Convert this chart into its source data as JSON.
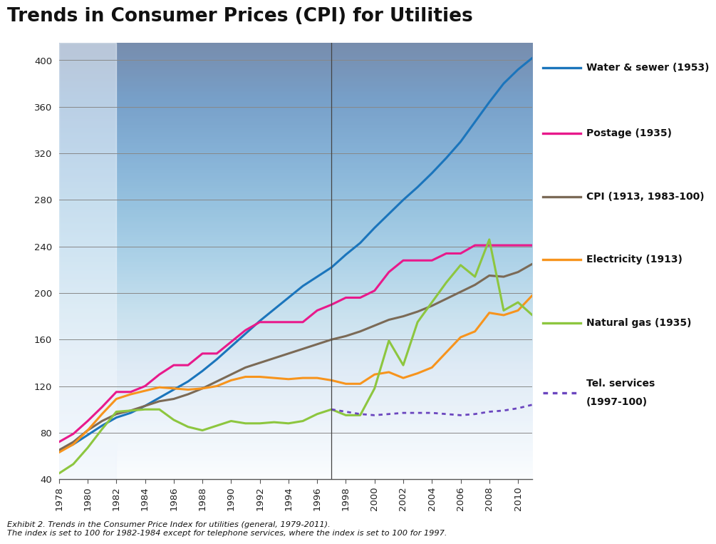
{
  "title": "Trends in Consumer Prices (CPI) for Utilities",
  "caption_line1": "Exhibit 2. Trends in the Consumer Price Index for utilities (general, 1979-2011).",
  "caption_line2": "The index is set to 100 for 1982-1984 except for telephone services, where the index is set to 100 for 1997.",
  "xlim": [
    1978,
    2011
  ],
  "ylim": [
    40,
    415
  ],
  "yticks": [
    80,
    120,
    160,
    200,
    240,
    280,
    320,
    360,
    400
  ],
  "ytick_40": 40,
  "xticks": [
    1978,
    1980,
    1982,
    1984,
    1986,
    1988,
    1990,
    1992,
    1994,
    1996,
    1998,
    2000,
    2002,
    2004,
    2006,
    2008,
    2010
  ],
  "water_sewer": {
    "years": [
      1978,
      1979,
      1980,
      1981,
      1982,
      1983,
      1984,
      1985,
      1986,
      1987,
      1988,
      1989,
      1990,
      1991,
      1992,
      1993,
      1994,
      1995,
      1996,
      1997,
      1998,
      1999,
      2000,
      2001,
      2002,
      2003,
      2004,
      2005,
      2006,
      2007,
      2008,
      2009,
      2010,
      2011
    ],
    "values": [
      64,
      70,
      78,
      86,
      93,
      97,
      103,
      110,
      117,
      124,
      133,
      143,
      154,
      165,
      176,
      186,
      196,
      206,
      214,
      222,
      233,
      243,
      256,
      268,
      280,
      291,
      303,
      316,
      330,
      347,
      364,
      380,
      392,
      402
    ],
    "color": "#1B75BC",
    "label": "Water & sewer (1953)",
    "lw": 2.2
  },
  "postage": {
    "years": [
      1978,
      1979,
      1980,
      1981,
      1982,
      1983,
      1984,
      1985,
      1986,
      1987,
      1988,
      1989,
      1990,
      1991,
      1992,
      1993,
      1994,
      1995,
      1996,
      1997,
      1998,
      1999,
      2000,
      2001,
      2002,
      2003,
      2004,
      2005,
      2006,
      2007,
      2008,
      2009,
      2010,
      2011
    ],
    "values": [
      72,
      79,
      90,
      102,
      115,
      115,
      120,
      130,
      138,
      138,
      148,
      148,
      158,
      168,
      175,
      175,
      175,
      175,
      185,
      190,
      196,
      196,
      202,
      218,
      228,
      228,
      228,
      234,
      234,
      241,
      241,
      241,
      241,
      241
    ],
    "color": "#E8198B",
    "label": "Postage (1935)",
    "lw": 2.2
  },
  "cpi": {
    "years": [
      1978,
      1979,
      1980,
      1981,
      1982,
      1983,
      1984,
      1985,
      1986,
      1987,
      1988,
      1989,
      1990,
      1991,
      1992,
      1993,
      1994,
      1995,
      1996,
      1997,
      1998,
      1999,
      2000,
      2001,
      2002,
      2003,
      2004,
      2005,
      2006,
      2007,
      2008,
      2009,
      2010,
      2011
    ],
    "values": [
      65,
      72,
      82,
      90,
      96,
      99,
      103,
      107,
      109,
      113,
      118,
      124,
      130,
      136,
      140,
      144,
      148,
      152,
      156,
      160,
      163,
      167,
      172,
      177,
      180,
      184,
      189,
      195,
      201,
      207,
      215,
      214,
      218,
      225
    ],
    "color": "#7B6A56",
    "label": "CPI (1913, 1983-100)",
    "lw": 2.2
  },
  "electricity": {
    "years": [
      1978,
      1979,
      1980,
      1981,
      1982,
      1983,
      1984,
      1985,
      1986,
      1987,
      1988,
      1989,
      1990,
      1991,
      1992,
      1993,
      1994,
      1995,
      1996,
      1997,
      1998,
      1999,
      2000,
      2001,
      2002,
      2003,
      2004,
      2005,
      2006,
      2007,
      2008,
      2009,
      2010,
      2011
    ],
    "values": [
      63,
      70,
      82,
      96,
      109,
      113,
      116,
      119,
      118,
      117,
      118,
      120,
      125,
      128,
      128,
      127,
      126,
      127,
      127,
      125,
      122,
      122,
      130,
      132,
      127,
      131,
      136,
      149,
      162,
      167,
      183,
      181,
      185,
      198
    ],
    "color": "#F7941D",
    "label": "Electricity (1913)",
    "lw": 2.2
  },
  "natural_gas": {
    "years": [
      1978,
      1979,
      1980,
      1981,
      1982,
      1983,
      1984,
      1985,
      1986,
      1987,
      1988,
      1989,
      1990,
      1991,
      1992,
      1993,
      1994,
      1995,
      1996,
      1997,
      1998,
      1999,
      2000,
      2001,
      2002,
      2003,
      2004,
      2005,
      2006,
      2007,
      2008,
      2009,
      2010,
      2011
    ],
    "values": [
      45,
      53,
      67,
      83,
      98,
      99,
      100,
      100,
      91,
      85,
      82,
      86,
      90,
      88,
      88,
      89,
      88,
      90,
      96,
      100,
      95,
      95,
      118,
      159,
      138,
      175,
      192,
      209,
      224,
      214,
      246,
      185,
      192,
      181
    ],
    "color": "#8DC63F",
    "label": "Natural gas (1935)",
    "lw": 2.2
  },
  "tel_services": {
    "years": [
      1997,
      1998,
      1999,
      2000,
      2001,
      2002,
      2003,
      2004,
      2005,
      2006,
      2007,
      2008,
      2009,
      2010,
      2011
    ],
    "values": [
      100,
      98,
      96,
      95,
      96,
      97,
      97,
      97,
      96,
      95,
      96,
      98,
      99,
      101,
      104
    ],
    "color": "#6B46BF",
    "label": "Tel. services\n(1997-100)",
    "lw": 2.0,
    "linestyle": "dotted"
  },
  "vline_x": 1997,
  "bg_color_light": "#EBF3FA",
  "bg_color_main": "#D4E5F3",
  "bg_color_lighter": "#F0F6FC",
  "grid_color": "#888888",
  "border_color": "#555555"
}
